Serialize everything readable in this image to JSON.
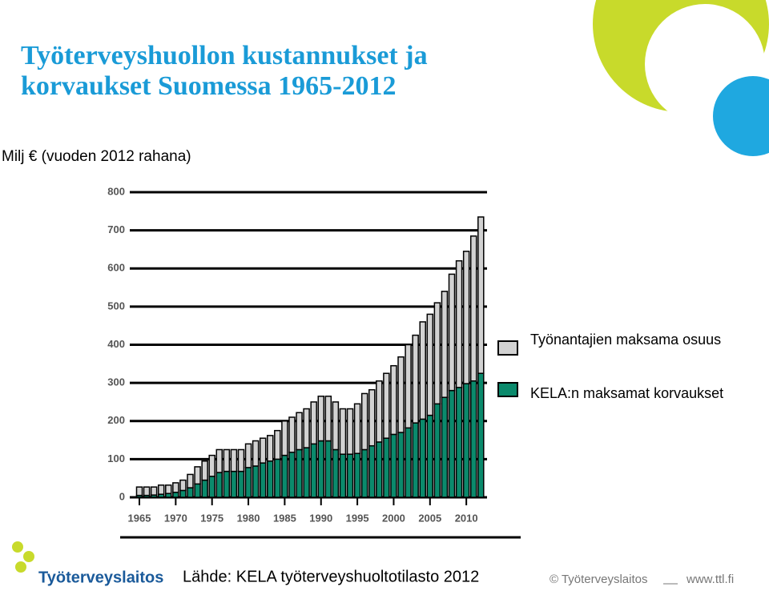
{
  "title_lines": [
    "Työterveyshuollon kustannukset ja",
    "korvaukset Suomessa 1965-2012"
  ],
  "subtitle": "Milj € (vuoden 2012 rahana)",
  "source": "Lähde: KELA työterveyshuoltotilasto 2012",
  "footer": {
    "copyright": "© Työterveyslaitos",
    "url": "www.ttl.fi",
    "logo": "Työterveyslaitos"
  },
  "chart_data": {
    "type": "stacked_bar",
    "categories": [
      "1965",
      null,
      null,
      null,
      null,
      "1970",
      null,
      null,
      null,
      null,
      "1975",
      null,
      null,
      null,
      null,
      "1980",
      null,
      null,
      null,
      null,
      "1985",
      null,
      null,
      null,
      null,
      "1990",
      null,
      null,
      null,
      null,
      "1995",
      null,
      null,
      null,
      null,
      "2000",
      null,
      null,
      null,
      null,
      "2005",
      null,
      null,
      null,
      null,
      "2010",
      null,
      null
    ],
    "series": [
      {
        "name": "KELA:n maksamat korvaukset",
        "color": "#0b8a6c",
        "values": [
          5,
          5,
          6,
          8,
          10,
          13,
          18,
          25,
          35,
          45,
          55,
          65,
          68,
          68,
          68,
          78,
          82,
          90,
          95,
          100,
          110,
          118,
          125,
          130,
          140,
          148,
          148,
          125,
          113,
          113,
          115,
          125,
          135,
          145,
          155,
          165,
          170,
          182,
          195,
          205,
          215,
          245,
          262,
          280,
          288,
          298,
          305,
          325
        ]
      },
      {
        "name": "Työnantajien maksama osuus",
        "color": "#d2d2d2",
        "values": [
          22,
          22,
          21,
          24,
          22,
          25,
          27,
          35,
          45,
          50,
          55,
          60,
          57,
          57,
          57,
          62,
          66,
          65,
          67,
          75,
          90,
          92,
          97,
          102,
          110,
          117,
          117,
          125,
          119,
          119,
          130,
          147,
          147,
          160,
          170,
          180,
          198,
          218,
          230,
          255,
          265,
          265,
          278,
          305,
          332,
          347,
          380,
          410
        ]
      }
    ],
    "ylim": [
      0,
      800
    ],
    "yticks": [
      0,
      100,
      200,
      300,
      400,
      500,
      600,
      700,
      800
    ],
    "grid": true
  }
}
